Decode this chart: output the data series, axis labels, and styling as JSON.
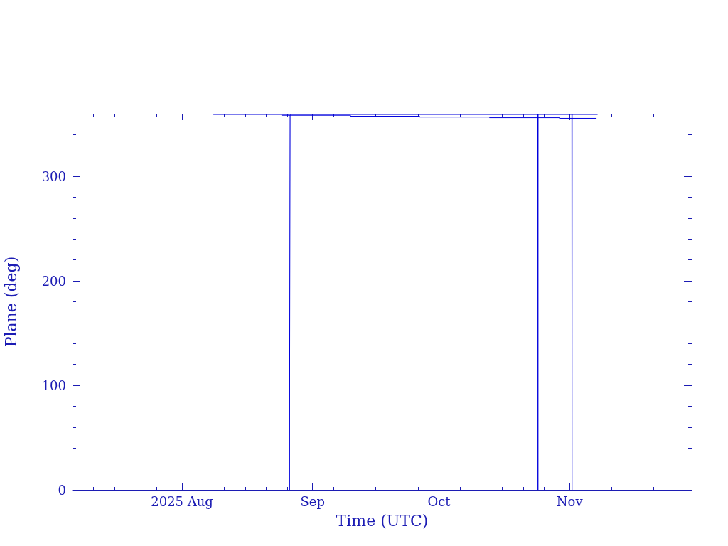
{
  "chart_data": {
    "type": "line",
    "xlabel": "Time (UTC)",
    "ylabel": "Plane (deg)",
    "xlim": [
      "2025-07-06",
      "2025-11-30"
    ],
    "ylim": [
      0,
      360
    ],
    "xticks": [
      {
        "value": "2025-07-11",
        "label": null
      },
      {
        "value": "2025-07-16",
        "label": null
      },
      {
        "value": "2025-07-21",
        "label": null
      },
      {
        "value": "2025-07-26",
        "label": null
      },
      {
        "value": "2025-08-01",
        "label": "2025 Aug"
      },
      {
        "value": "2025-08-06",
        "label": null
      },
      {
        "value": "2025-08-11",
        "label": null
      },
      {
        "value": "2025-08-16",
        "label": null
      },
      {
        "value": "2025-08-21",
        "label": null
      },
      {
        "value": "2025-08-26",
        "label": null
      },
      {
        "value": "2025-09-01",
        "label": "Sep"
      },
      {
        "value": "2025-09-06",
        "label": null
      },
      {
        "value": "2025-09-11",
        "label": null
      },
      {
        "value": "2025-09-16",
        "label": null
      },
      {
        "value": "2025-09-21",
        "label": null
      },
      {
        "value": "2025-09-26",
        "label": null
      },
      {
        "value": "2025-10-01",
        "label": "Oct"
      },
      {
        "value": "2025-10-06",
        "label": null
      },
      {
        "value": "2025-10-11",
        "label": null
      },
      {
        "value": "2025-10-16",
        "label": null
      },
      {
        "value": "2025-10-21",
        "label": null
      },
      {
        "value": "2025-10-26",
        "label": null
      },
      {
        "value": "2025-11-01",
        "label": "Nov"
      },
      {
        "value": "2025-11-06",
        "label": null
      },
      {
        "value": "2025-11-11",
        "label": null
      },
      {
        "value": "2025-11-16",
        "label": null
      },
      {
        "value": "2025-11-21",
        "label": null
      },
      {
        "value": "2025-11-26",
        "label": null
      }
    ],
    "yticks": [
      0,
      {
        "value": 20,
        "label": null
      },
      {
        "value": 40,
        "label": null
      },
      {
        "value": 60,
        "label": null
      },
      {
        "value": 80,
        "label": null
      },
      100,
      {
        "value": 120,
        "label": null
      },
      {
        "value": 140,
        "label": null
      },
      {
        "value": 160,
        "label": null
      },
      {
        "value": 180,
        "label": null
      },
      200,
      {
        "value": 220,
        "label": null
      },
      {
        "value": 240,
        "label": null
      },
      {
        "value": 260,
        "label": null
      },
      {
        "value": 280,
        "label": null
      },
      300,
      {
        "value": 320,
        "label": null
      },
      {
        "value": 340,
        "label": null
      }
    ],
    "marker": "none",
    "line_style": "solid",
    "series": [
      {
        "color": "#0000dd",
        "x": [
          "2025-08-08T12:00",
          "2025-08-26T10:00",
          "2025-08-26T12:00",
          "2025-08-26T16:00",
          "2025-10-24T11:00",
          "2025-10-24T12:00",
          "2025-10-24T13:00",
          "2025-11-01T13:00",
          "2025-11-01T14:00",
          "2025-11-01T15:00",
          "2025-11-07T14:00"
        ],
        "values": [
          359.3,
          359.3,
          0,
          359.3,
          359.3,
          0,
          359.3,
          359.3,
          0,
          359.3,
          359.3
        ]
      },
      {
        "type": "step",
        "color": "#0000dd",
        "x": [
          "2025-08-24T16:00",
          "2025-09-10T00:00",
          "2025-09-26T10:00",
          "2025-10-13T00:00",
          "2025-10-29T14:00",
          "2025-11-07T08:00"
        ],
        "values": [
          358.5,
          357.6,
          356.8,
          356.2,
          355.6,
          355.6
        ]
      }
    ]
  }
}
